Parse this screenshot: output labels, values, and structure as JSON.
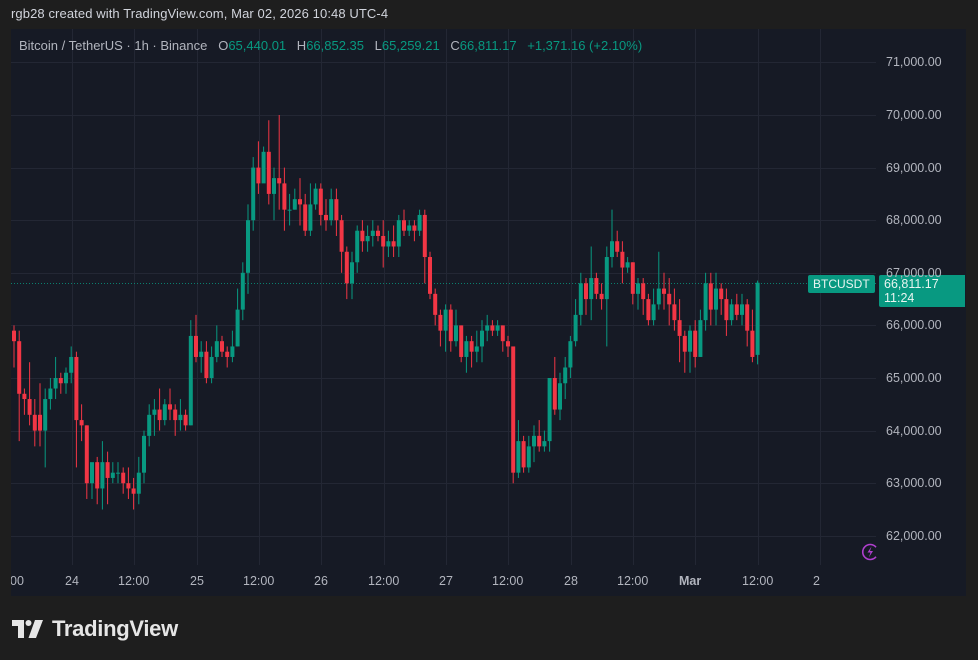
{
  "credit": "rgb28 created with TradingView.com, Mar 02, 2026 10:48 UTC-4",
  "legend": {
    "symbol": "Bitcoin / TetherUS · 1h · Binance",
    "open_label": "O",
    "open": "65,440.01",
    "high_label": "H",
    "high": "66,852.35",
    "low_label": "L",
    "low": "65,259.21",
    "close_label": "C",
    "close": "66,811.17",
    "change": "+1,371.16 (+2.10%)"
  },
  "price_badge": {
    "ticker": "BTCUSDT",
    "price": "66,811.17",
    "countdown": "11:24"
  },
  "colors": {
    "up": "#089981",
    "down": "#f23645",
    "background": "#161a25",
    "grid": "#232734",
    "accent": "#9c27b0"
  },
  "icons": {
    "lightning": "lightning-icon",
    "logo": "tradingview-logo-icon"
  },
  "brand": "TradingView",
  "chart_data": {
    "type": "candlestick",
    "title": "Bitcoin / TetherUS · 1h · Binance",
    "xlabel": "",
    "ylabel": "",
    "ylim": [
      61500,
      71500
    ],
    "y_ticks": [
      "71,000.00",
      "70,000.00",
      "69,000.00",
      "68,000.00",
      "67,000.00",
      "66,000.00",
      "65,000.00",
      "64,000.00",
      "63,000.00",
      "62,000.00"
    ],
    "x_ticks": [
      "00",
      "24",
      "12:00",
      "25",
      "12:00",
      "26",
      "12:00",
      "27",
      "12:00",
      "28",
      "12:00",
      "Mar",
      "12:00",
      "2"
    ],
    "last_price": 66811.17,
    "grid": true,
    "candles": [
      [
        65900,
        65700,
        66000,
        65200
      ],
      [
        65700,
        64700,
        65900,
        63800
      ],
      [
        64700,
        64600,
        64800,
        64300
      ],
      [
        64600,
        64300,
        65300,
        64100
      ],
      [
        64300,
        64000,
        64600,
        63700
      ],
      [
        64300,
        64000,
        64900,
        63700
      ],
      [
        64000,
        64600,
        64800,
        63300
      ],
      [
        64600,
        64800,
        65000,
        64400
      ],
      [
        64800,
        65000,
        65400,
        64600
      ],
      [
        65000,
        64900,
        65100,
        64700
      ],
      [
        64900,
        65100,
        65200,
        64700
      ],
      [
        65100,
        65400,
        65600,
        64900
      ],
      [
        65400,
        64200,
        65500,
        63300
      ],
      [
        64200,
        64100,
        64500,
        63800
      ],
      [
        64100,
        63000,
        64100,
        62700
      ],
      [
        63000,
        63400,
        63300,
        62700
      ],
      [
        63400,
        62900,
        63500,
        62600
      ],
      [
        62900,
        63400,
        63800,
        62500
      ],
      [
        63400,
        63100,
        63600,
        62600
      ],
      [
        63100,
        63200,
        63400,
        63000
      ],
      [
        63200,
        63200,
        63400,
        63000
      ],
      [
        63200,
        63000,
        63300,
        62800
      ],
      [
        63000,
        62900,
        63300,
        62700
      ],
      [
        62900,
        62800,
        63100,
        62500
      ],
      [
        62800,
        63200,
        63500,
        62600
      ],
      [
        63200,
        63900,
        64000,
        63000
      ],
      [
        63900,
        64300,
        64500,
        63700
      ],
      [
        64300,
        64400,
        64600,
        63900
      ],
      [
        64400,
        64200,
        64800,
        64000
      ],
      [
        64200,
        64500,
        64600,
        64100
      ],
      [
        64500,
        64400,
        64800,
        64200
      ],
      [
        64400,
        64200,
        64500,
        63900
      ],
      [
        64200,
        64300,
        64600,
        64000
      ],
      [
        64300,
        64100,
        64400,
        64000
      ],
      [
        64100,
        65800,
        66100,
        64100
      ],
      [
        65800,
        65400,
        66200,
        65300
      ],
      [
        65400,
        65500,
        65700,
        65100
      ],
      [
        65500,
        65000,
        65700,
        64900
      ],
      [
        65000,
        65400,
        65600,
        64900
      ],
      [
        65400,
        65700,
        66000,
        65300
      ],
      [
        65700,
        65500,
        65800,
        65400
      ],
      [
        65500,
        65400,
        65600,
        65200
      ],
      [
        65400,
        65600,
        65900,
        65300
      ],
      [
        65600,
        66300,
        66700,
        65600
      ],
      [
        66300,
        67000,
        67200,
        66100
      ],
      [
        67000,
        68000,
        68300,
        66600
      ],
      [
        68000,
        69000,
        69200,
        67800
      ],
      [
        69000,
        68700,
        69500,
        68500
      ],
      [
        68700,
        69300,
        69400,
        68900
      ],
      [
        69300,
        68500,
        69900,
        68300
      ],
      [
        68500,
        68800,
        69000,
        68000
      ],
      [
        68800,
        68700,
        70000,
        68200
      ],
      [
        68700,
        68200,
        69000,
        67800
      ],
      [
        68200,
        68200,
        68500,
        67900
      ],
      [
        68200,
        68400,
        68600,
        68200
      ],
      [
        68400,
        68300,
        68800,
        67900
      ],
      [
        68300,
        67800,
        68500,
        67700
      ],
      [
        67800,
        68300,
        68700,
        67700
      ],
      [
        68300,
        68600,
        68700,
        68200
      ],
      [
        68600,
        68100,
        68700,
        67900
      ],
      [
        68100,
        68000,
        68400,
        67800
      ],
      [
        68000,
        68400,
        68600,
        67900
      ],
      [
        68400,
        68000,
        68600,
        67700
      ],
      [
        68000,
        67400,
        68100,
        67000
      ],
      [
        67400,
        66800,
        67500,
        66500
      ],
      [
        66800,
        67200,
        67400,
        66500
      ],
      [
        67200,
        67800,
        67900,
        67000
      ],
      [
        67800,
        67600,
        68000,
        67400
      ],
      [
        67600,
        67700,
        67900,
        67400
      ],
      [
        67700,
        67800,
        68000,
        67500
      ],
      [
        67800,
        67700,
        67900,
        67600
      ],
      [
        67700,
        67500,
        68000,
        67100
      ],
      [
        67500,
        67600,
        67800,
        67300
      ],
      [
        67600,
        67500,
        67900,
        67300
      ],
      [
        67500,
        68000,
        68100,
        67300
      ],
      [
        68000,
        67800,
        68200,
        67700
      ],
      [
        67800,
        67900,
        68000,
        67700
      ],
      [
        67900,
        67800,
        68000,
        67600
      ],
      [
        67800,
        68100,
        68200,
        67700
      ],
      [
        68100,
        67300,
        68200,
        66800
      ],
      [
        67300,
        66600,
        67400,
        66500
      ],
      [
        66600,
        66200,
        66700,
        66000
      ],
      [
        66200,
        65900,
        66300,
        65600
      ],
      [
        65900,
        66300,
        66400,
        65500
      ],
      [
        66300,
        65700,
        66400,
        65500
      ],
      [
        65700,
        66000,
        66300,
        65600
      ],
      [
        66000,
        65400,
        66000,
        65300
      ],
      [
        65400,
        65700,
        65800,
        65100
      ],
      [
        65700,
        65500,
        65800,
        65200
      ],
      [
        65500,
        65600,
        65900,
        65300
      ],
      [
        65600,
        65900,
        66100,
        65300
      ],
      [
        65900,
        66000,
        66200,
        65700
      ],
      [
        66000,
        65900,
        66100,
        65800
      ],
      [
        65900,
        66000,
        66100,
        65800
      ],
      [
        66000,
        65700,
        66000,
        65500
      ],
      [
        65700,
        65600,
        65800,
        65400
      ],
      [
        65600,
        63200,
        65600,
        63000
      ],
      [
        63200,
        63800,
        64200,
        63100
      ],
      [
        63800,
        63300,
        63900,
        63200
      ],
      [
        63300,
        63700,
        63900,
        63200
      ],
      [
        63700,
        63900,
        64100,
        63400
      ],
      [
        63900,
        63700,
        64200,
        63600
      ],
      [
        63700,
        63800,
        64000,
        63600
      ],
      [
        63800,
        65000,
        65000,
        63600
      ],
      [
        65000,
        64400,
        65400,
        64300
      ],
      [
        64400,
        64900,
        65100,
        64200
      ],
      [
        64900,
        65200,
        65400,
        64600
      ],
      [
        65200,
        65700,
        65800,
        65000
      ],
      [
        65700,
        66200,
        66500,
        65600
      ],
      [
        66200,
        66800,
        67000,
        66000
      ],
      [
        66800,
        66500,
        66900,
        66200
      ],
      [
        66500,
        66900,
        67500,
        66100
      ],
      [
        66900,
        66600,
        67000,
        66500
      ],
      [
        66600,
        66500,
        66800,
        66300
      ],
      [
        66500,
        67300,
        67500,
        65600
      ],
      [
        67300,
        67600,
        68200,
        67100
      ],
      [
        67600,
        67400,
        67800,
        67300
      ],
      [
        67400,
        67100,
        67600,
        66800
      ],
      [
        67100,
        67200,
        67300,
        67000
      ],
      [
        67200,
        66600,
        67200,
        66400
      ],
      [
        66600,
        66800,
        66900,
        66300
      ],
      [
        66800,
        66500,
        66900,
        66200
      ],
      [
        66500,
        66100,
        66600,
        66000
      ],
      [
        66100,
        66400,
        66700,
        66000
      ],
      [
        66400,
        66700,
        67400,
        66300
      ],
      [
        66700,
        66600,
        67000,
        66300
      ],
      [
        66600,
        66400,
        66900,
        66000
      ],
      [
        66400,
        66100,
        66700,
        65900
      ],
      [
        66100,
        65800,
        66500,
        65300
      ],
      [
        65800,
        65500,
        65900,
        65100
      ],
      [
        65500,
        65900,
        66000,
        65100
      ],
      [
        65900,
        65400,
        66100,
        65200
      ],
      [
        65400,
        66100,
        66300,
        65400
      ],
      [
        66100,
        66800,
        67000,
        65900
      ],
      [
        66800,
        66300,
        67000,
        66000
      ],
      [
        66300,
        66700,
        67000,
        66000
      ],
      [
        66700,
        66500,
        66800,
        66200
      ],
      [
        66500,
        66100,
        66700,
        65800
      ],
      [
        66100,
        66400,
        66500,
        66000
      ],
      [
        66400,
        66200,
        66600,
        66100
      ],
      [
        66200,
        66400,
        66600,
        66000
      ],
      [
        66400,
        65900,
        66500,
        65600
      ],
      [
        65900,
        65400,
        66300,
        65300
      ],
      [
        65440.01,
        66811.17,
        66852.35,
        65259.21
      ]
    ]
  }
}
